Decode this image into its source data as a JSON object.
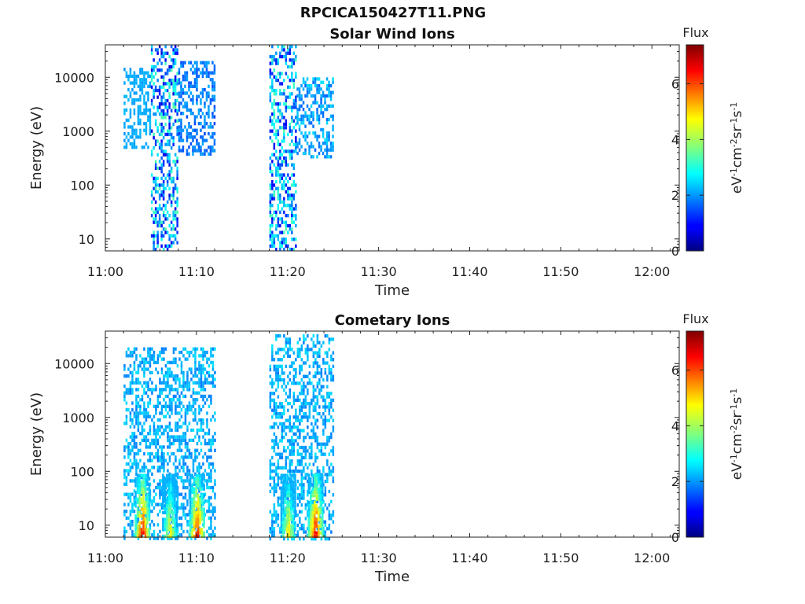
{
  "figure": {
    "main_title": "RPCICA150427T11.PNG"
  },
  "chart_data": [
    {
      "type": "heatmap",
      "title": "Solar Wind Ions",
      "xlabel": "Time",
      "ylabel": "Energy (eV)",
      "x_ticks": [
        "11:00",
        "11:10",
        "11:20",
        "11:30",
        "11:40",
        "11:50",
        "12:00"
      ],
      "y_ticks": [
        "10",
        "100",
        "1000",
        "10000"
      ],
      "y_scale": "log",
      "xlim": [
        "11:00",
        "12:03"
      ],
      "ylim": [
        6,
        40000
      ],
      "colorbar": {
        "title": "Flux",
        "label": "eV-1cm-2sr-1s-1",
        "ticks": [
          "0",
          "2",
          "4",
          "6"
        ],
        "range": [
          0,
          7.4
        ],
        "colormap": "jet"
      },
      "bursts": [
        {
          "t_start": "11:02",
          "t_end": "11:05",
          "e_min": 500,
          "e_max": 15000,
          "flux_min": 2.0,
          "flux_max": 2.3
        },
        {
          "t_start": "11:05",
          "t_end": "11:08",
          "e_min": 6,
          "e_max": 40000,
          "flux_min": 0.6,
          "flux_max": 3.4
        },
        {
          "t_start": "11:08",
          "t_end": "11:12",
          "e_min": 350,
          "e_max": 20000,
          "flux_min": 1.4,
          "flux_max": 2.2
        },
        {
          "t_start": "11:18",
          "t_end": "11:21",
          "e_min": 6,
          "e_max": 40000,
          "flux_min": 0.8,
          "flux_max": 3.4
        },
        {
          "t_start": "11:21",
          "t_end": "11:25",
          "e_min": 350,
          "e_max": 10000,
          "flux_min": 1.6,
          "flux_max": 2.6
        }
      ]
    },
    {
      "type": "heatmap",
      "title": "Cometary Ions",
      "xlabel": "Time",
      "ylabel": "Energy (eV)",
      "x_ticks": [
        "11:00",
        "11:10",
        "11:20",
        "11:30",
        "11:40",
        "11:50",
        "12:00"
      ],
      "y_ticks": [
        "10",
        "100",
        "1000",
        "10000"
      ],
      "y_scale": "log",
      "xlim": [
        "11:00",
        "12:03"
      ],
      "ylim": [
        6,
        40000
      ],
      "colorbar": {
        "title": "Flux",
        "label": "eV-1cm-2sr-1s-1",
        "ticks": [
          "0",
          "2",
          "4",
          "6"
        ],
        "range": [
          0,
          7.4
        ],
        "colormap": "jet"
      },
      "bursts": [
        {
          "t_start": "11:02",
          "t_end": "11:12",
          "e_min": 6,
          "e_max": 20000,
          "flux_min": 1.8,
          "flux_max": 2.6
        },
        {
          "t_start": "11:18",
          "t_end": "11:25",
          "e_min": 6,
          "e_max": 35000,
          "flux_min": 1.8,
          "flux_max": 2.6
        }
      ],
      "hot_spots": [
        {
          "t_center": "11:04",
          "e_peak": 10,
          "flux_peak": 7.0
        },
        {
          "t_center": "11:07",
          "e_peak": 10,
          "flux_peak": 5.0
        },
        {
          "t_center": "11:10",
          "e_peak": 10,
          "flux_peak": 6.8
        },
        {
          "t_center": "11:20",
          "e_peak": 10,
          "flux_peak": 5.2
        },
        {
          "t_center": "11:23",
          "e_peak": 10,
          "flux_peak": 7.0
        }
      ]
    }
  ]
}
